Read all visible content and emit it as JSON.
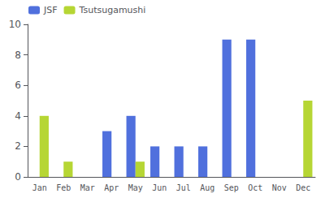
{
  "chart_data": {
    "type": "bar",
    "categories": [
      "Jan",
      "Feb",
      "Mar",
      "Apr",
      "May",
      "Jun",
      "Jul",
      "Aug",
      "Sep",
      "Oct",
      "Nov",
      "Dec"
    ],
    "series": [
      {
        "name": "JSF",
        "values": [
          0,
          0,
          0,
          3,
          4,
          2,
          2,
          2,
          9,
          9,
          0,
          0
        ]
      },
      {
        "name": "Tsutsugamushi",
        "values": [
          4,
          1,
          0,
          0,
          1,
          0,
          0,
          0,
          0,
          0,
          0,
          5
        ]
      }
    ],
    "ylim": [
      0,
      10
    ],
    "yticks": [
      0,
      2,
      4,
      6,
      8,
      10
    ],
    "grid": false,
    "legend": "upper left"
  }
}
